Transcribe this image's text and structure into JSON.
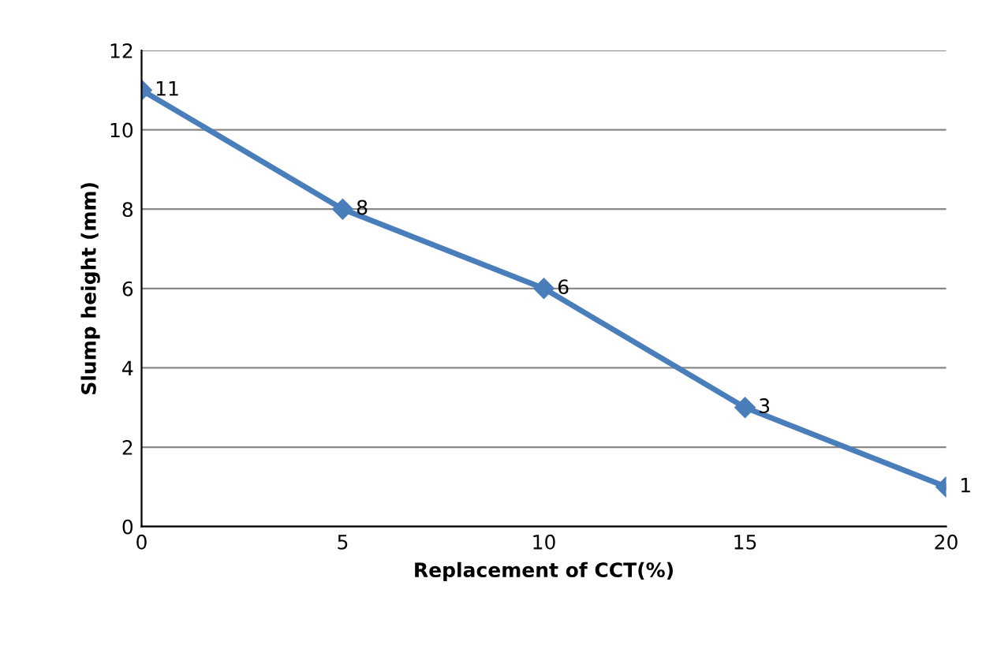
{
  "chart_data": {
    "type": "line",
    "xlabel": "Replacement of CCT(%)",
    "ylabel": "Slump height (mm)",
    "x": [
      0,
      5,
      10,
      15,
      20
    ],
    "series": [
      {
        "color": "#4a7ebb",
        "values": [
          11,
          8,
          6,
          3,
          1
        ]
      }
    ],
    "xlim": [
      0,
      20
    ],
    "xticks": [
      0,
      5,
      10,
      15,
      20
    ],
    "ylim": [
      0,
      12
    ],
    "yticks": [
      0,
      2,
      4,
      6,
      8,
      10,
      12
    ],
    "grid": "y",
    "marker": "diamond",
    "line_style": "solid",
    "data_labels": true,
    "legend": false
  }
}
